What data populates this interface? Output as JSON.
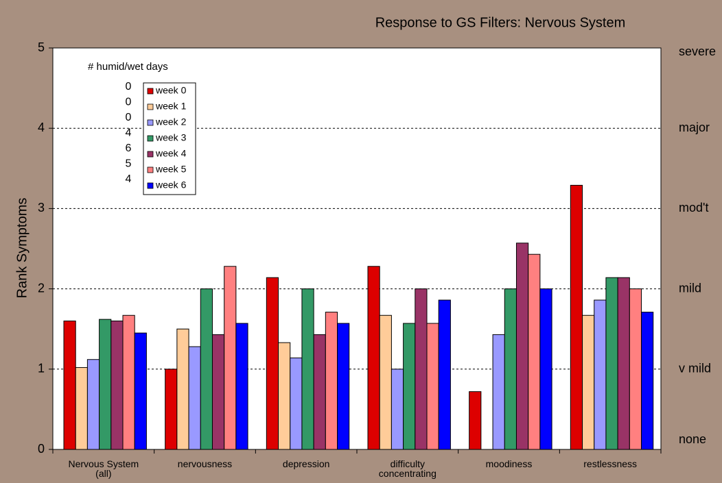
{
  "chart_data": {
    "type": "bar",
    "title": "Response to GS Filters:  Nervous System",
    "y_label": "Rank Symptoms",
    "categories": [
      "Nervous System (all)",
      "nervousness",
      "depression",
      "difficulty concentrating",
      "moodiness",
      "restlessness"
    ],
    "series": [
      {
        "name": "week 0",
        "color": "#dd0000",
        "values": [
          1.6,
          1.0,
          2.14,
          2.28,
          0.72,
          3.29
        ]
      },
      {
        "name": "week 1",
        "color": "#ffcc99",
        "values": [
          1.02,
          1.5,
          1.33,
          1.67,
          0,
          1.67
        ]
      },
      {
        "name": "week 2",
        "color": "#9999ff",
        "values": [
          1.12,
          1.28,
          1.14,
          1.0,
          1.43,
          1.86
        ]
      },
      {
        "name": "week 3",
        "color": "#339966",
        "values": [
          1.62,
          2.0,
          2.0,
          1.57,
          2.0,
          2.14
        ]
      },
      {
        "name": "week 4",
        "color": "#993366",
        "values": [
          1.6,
          1.43,
          1.43,
          2.0,
          2.57,
          2.14
        ]
      },
      {
        "name": "week 5",
        "color": "#ff8080",
        "values": [
          1.67,
          2.28,
          1.71,
          1.57,
          2.43,
          2.0
        ]
      },
      {
        "name": "week 6",
        "color": "#0000ff",
        "values": [
          1.45,
          1.57,
          1.57,
          1.86,
          2.0,
          1.71
        ]
      }
    ],
    "humid_wet_days": {
      "label": "# humid/wet days",
      "values": [
        0,
        0,
        0,
        4,
        6,
        5,
        4
      ]
    },
    "ylim": [
      0,
      5
    ],
    "yticks": [
      0,
      1,
      2,
      3,
      4,
      5
    ],
    "grid_lines": [
      1,
      2,
      3,
      4
    ],
    "right_labels": [
      {
        "value": 5,
        "label": "severe"
      },
      {
        "value": 4,
        "label": "major"
      },
      {
        "value": 3,
        "label": "mod't"
      },
      {
        "value": 2,
        "label": "mild"
      },
      {
        "value": 1,
        "label": "v mild"
      },
      {
        "value": 0,
        "label": "none"
      }
    ]
  }
}
